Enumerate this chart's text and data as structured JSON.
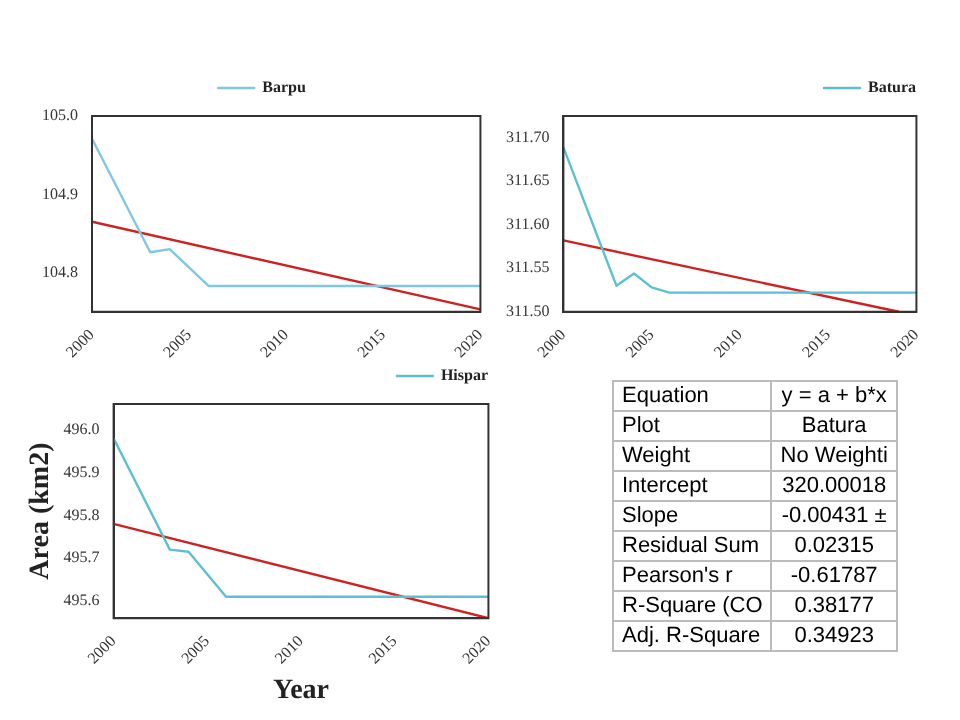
{
  "chart_data": [
    {
      "type": "line",
      "xlim": [
        2000,
        2020
      ],
      "xticks": [
        2000,
        2005,
        2010,
        2015,
        2020
      ],
      "ylim": [
        104.75,
        105.0
      ],
      "yticks": [
        104.8,
        104.9,
        {
          "value": 105,
          "label": "105.0"
        }
      ],
      "legend": "top",
      "marker": "none",
      "grid": false,
      "series": [
        {
          "name": "Barpu",
          "type": "line",
          "color": "#7ec8e3",
          "x": [
            2000,
            2003,
            2004,
            2006,
            2020
          ],
          "values": [
            104.971,
            104.826,
            104.83,
            104.783,
            104.783
          ]
        },
        {
          "type": "line",
          "color": "#cc2222",
          "x": [
            2000,
            2020
          ],
          "values": [
            104.865,
            104.753
          ]
        }
      ]
    },
    {
      "type": "line",
      "xlim": [
        2000,
        2020
      ],
      "xticks": [
        2000,
        2005,
        2010,
        2015,
        2020
      ],
      "ylim": [
        311.5,
        311.725
      ],
      "yticks": [
        {
          "value": 311.5,
          "label": "311.50"
        },
        311.55,
        {
          "value": 311.6,
          "label": "311.60"
        },
        311.65,
        {
          "value": 311.7,
          "label": "311.70"
        }
      ],
      "legend": "top right",
      "marker": "none",
      "grid": false,
      "series": [
        {
          "name": "Batura",
          "type": "line",
          "color": "#5bc0d0",
          "x": [
            2000,
            2003,
            2004,
            2005,
            2006,
            2020
          ],
          "values": [
            311.689,
            311.53,
            311.544,
            311.528,
            311.522,
            311.522
          ]
        },
        {
          "type": "line",
          "color": "#cc2222",
          "x": [
            2000,
            2019
          ],
          "values": [
            311.582,
            311.5
          ]
        }
      ]
    },
    {
      "type": "line",
      "xlabel": "Year",
      "ylabel": "Area (km2)",
      "xlim": [
        2000,
        2020
      ],
      "xticks": [
        2000,
        2005,
        2010,
        2015,
        2020
      ],
      "ylim": [
        495.56,
        496.06
      ],
      "yticks": [
        495.6,
        495.7,
        495.8,
        495.9,
        {
          "value": 496,
          "label": "496.0"
        }
      ],
      "legend": "top right",
      "marker": "none",
      "grid": false,
      "series": [
        {
          "name": "Hispar",
          "type": "line",
          "color": "#5bc0d0",
          "x": [
            2000,
            2003,
            2004,
            2006,
            2020
          ],
          "values": [
            495.98,
            495.72,
            495.715,
            495.61,
            495.61
          ]
        },
        {
          "type": "line",
          "color": "#cc2222",
          "x": [
            2000,
            2020
          ],
          "values": [
            495.78,
            495.56
          ]
        }
      ]
    },
    {
      "type": "other",
      "annotations": [
        "Equation",
        "y = a + b*x",
        "Plot",
        "Batura",
        "Weight",
        "No Weighti",
        "Intercept",
        "320.00018",
        "Slope",
        "-0.00431 ±",
        "Residual Sum",
        "0.02315",
        "Pearson's r",
        "-0.61787",
        "R-Square (CO",
        "0.38177",
        "Adj. R-Square",
        "0.34923"
      ]
    }
  ]
}
